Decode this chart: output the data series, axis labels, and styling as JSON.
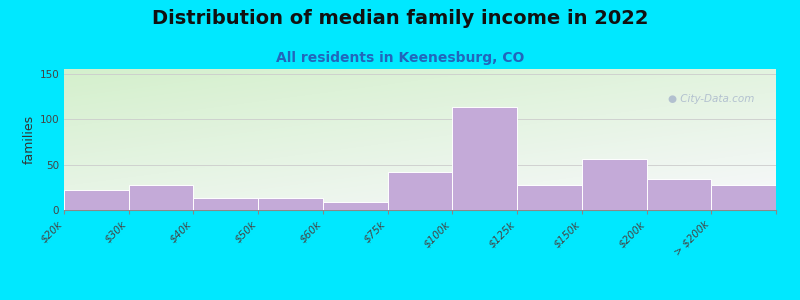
{
  "title": "Distribution of median family income in 2022",
  "subtitle": "All residents in Keenesburg, CO",
  "ylabel": "families",
  "tick_labels": [
    "$20k",
    "$30k",
    "$40k",
    "$50k",
    "$60k",
    "$75k",
    "$100k",
    "$125k",
    "$150k",
    "$200k",
    "> $200k"
  ],
  "values": [
    22,
    28,
    13,
    13,
    9,
    42,
    113,
    27,
    56,
    34,
    27
  ],
  "bar_color": "#c4aad8",
  "bar_edge_color": "#ffffff",
  "background_outer": "#00e8ff",
  "background_inner_top_left": "#d4f0cc",
  "background_inner_bottom_right": "#f8f8fc",
  "title_fontsize": 14,
  "subtitle_fontsize": 10,
  "subtitle_color": "#2266bb",
  "ylabel_fontsize": 9,
  "tick_label_fontsize": 7.5,
  "yticks": [
    0,
    50,
    100,
    150
  ],
  "ylim": [
    0,
    155
  ],
  "watermark": "City-Data.com",
  "watermark_color": "#aab8cc"
}
